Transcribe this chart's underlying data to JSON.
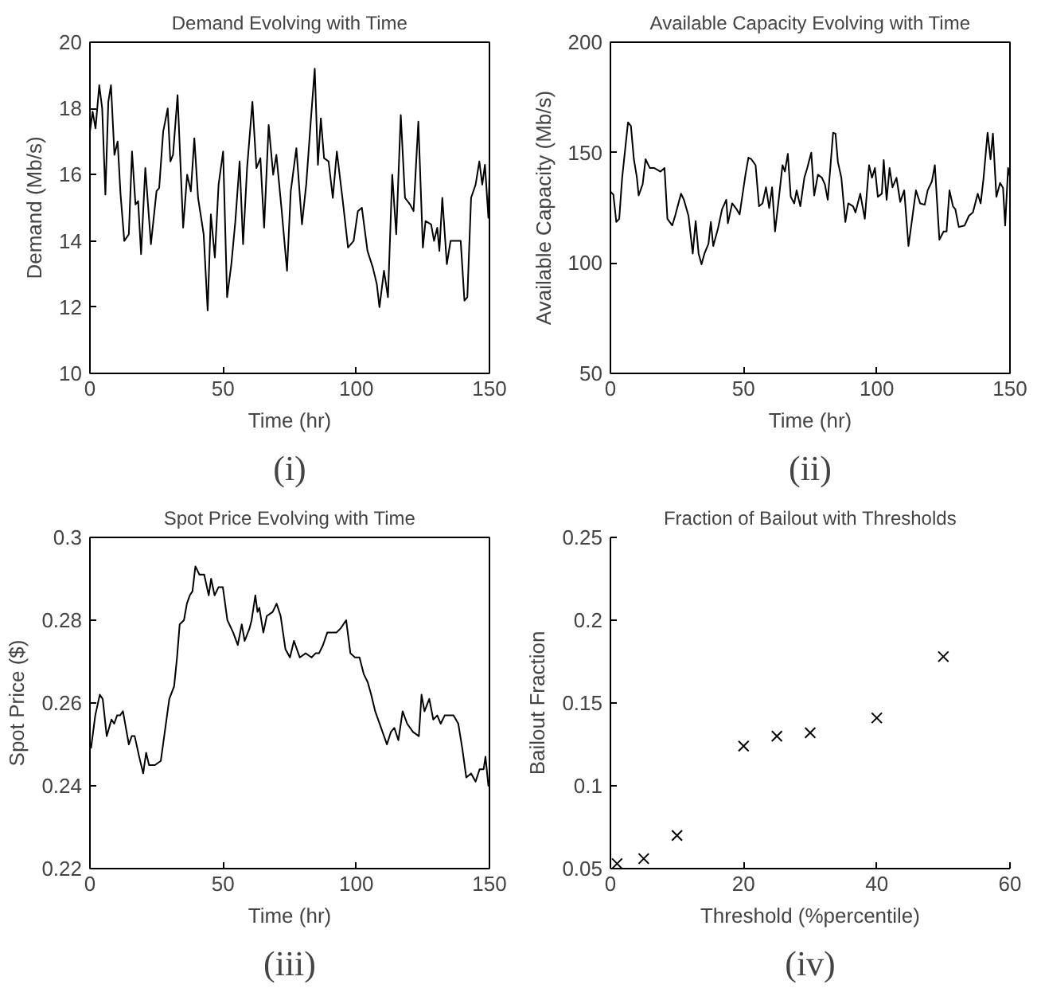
{
  "chart_data": [
    {
      "type": "line",
      "title": "Demand Evolving with Time",
      "xlabel": "Time (hr)",
      "ylabel": "Demand (Mb/s)",
      "annotations": [
        "(i)"
      ],
      "xlim": [
        0,
        150
      ],
      "xticks": [
        0,
        50,
        100,
        150
      ],
      "ylim": [
        10,
        20
      ],
      "yticks": [
        10,
        12,
        14,
        16,
        18,
        20
      ],
      "grid": false,
      "series": [
        {
          "color": "#000000",
          "x": [
            0,
            1.0,
            2.1,
            3.5,
            4.6,
            5.8,
            6.9,
            7.9,
            9.2,
            10.4,
            11.5,
            12.9,
            14.6,
            15.8,
            17.1,
            18.1,
            19.2,
            20.8,
            22.9,
            25,
            26,
            27.5,
            29.2,
            30.2,
            31.2,
            32.9,
            35,
            36.5,
            37.9,
            39.2,
            40.6,
            42.7,
            44.2,
            45.4,
            46.9,
            48.3,
            50,
            51.5,
            53.1,
            54.6,
            56.2,
            57.5,
            59,
            61,
            62.5,
            64,
            65.4,
            67.1,
            68.8,
            70,
            71.9,
            74,
            75.4,
            77.5,
            79.6,
            81.2,
            82.9,
            84.4,
            85.6,
            86.7,
            87.9,
            89.6,
            91.2,
            92.7,
            94.8,
            96.9,
            99,
            100.6,
            102.1,
            104.2,
            106.2,
            107.7,
            108.7,
            110.4,
            111.9,
            113.5,
            115,
            116.7,
            118.3,
            120.2,
            121.5,
            123.3,
            125,
            126,
            128.1,
            129.2,
            130.4,
            131.2,
            132.3,
            134,
            135.4,
            137.5,
            139.2,
            140.6,
            141.7,
            143.1,
            144.8,
            146.2,
            147.3,
            148.3,
            149.6,
            150
          ],
          "values": [
            17.3,
            17.9,
            17.4,
            18.7,
            18.0,
            15.4,
            18.2,
            18.7,
            16.6,
            17.0,
            15.4,
            14.0,
            14.2,
            16.7,
            15.1,
            15.2,
            13.6,
            16.2,
            13.9,
            15.5,
            15.6,
            17.3,
            18.0,
            16.4,
            16.6,
            18.4,
            14.4,
            16.0,
            15.5,
            17.1,
            15.3,
            14.2,
            11.9,
            14.8,
            13.5,
            15.7,
            16.7,
            12.3,
            13.3,
            14.6,
            16.4,
            13.9,
            16.2,
            18.2,
            16.2,
            16.5,
            14.4,
            17.5,
            16.0,
            16.6,
            15.0,
            13.1,
            15.5,
            16.8,
            14.5,
            15.7,
            17.6,
            19.2,
            16.3,
            17.7,
            16.5,
            16.4,
            15.3,
            16.7,
            15.3,
            13.8,
            14.0,
            14.9,
            15.0,
            13.7,
            13.2,
            12.7,
            12.0,
            13.1,
            12.3,
            16.0,
            14.2,
            17.8,
            15.3,
            15.1,
            14.9,
            17.6,
            13.8,
            14.6,
            14.5,
            14.0,
            14.4,
            13.7,
            15.3,
            13.3,
            14.0,
            14.0,
            14.0,
            12.2,
            12.3,
            15.3,
            15.7,
            16.4,
            15.7,
            16.3,
            14.7,
            16.0
          ]
        }
      ]
    },
    {
      "type": "line",
      "title": "Available Capacity Evolving with Time",
      "xlabel": "Time (hr)",
      "ylabel": "Available Capacity (Mb/s)",
      "annotations": [
        "(ii)"
      ],
      "xlim": [
        0,
        150
      ],
      "xticks": [
        0,
        50,
        100,
        150
      ],
      "ylim": [
        50,
        200
      ],
      "yticks": [
        50,
        100,
        150,
        200
      ],
      "grid": false,
      "series": [
        {
          "color": "#000000",
          "x": [
            0,
            1.1,
            2.2,
            3.3,
            4.4,
            6.6,
            7.7,
            8.8,
            9.9,
            10.6,
            12.1,
            13.2,
            14.8,
            16.5,
            18.8,
            20.3,
            21.4,
            23.2,
            24.3,
            26.5,
            27.6,
            29.3,
            30.9,
            32,
            33.1,
            34.2,
            35.3,
            36.8,
            37.7,
            38.6,
            40.4,
            41.9,
            43.5,
            44.1,
            45.7,
            47.4,
            48.5,
            50.7,
            51.8,
            52.9,
            54.5,
            55.8,
            57.1,
            58.4,
            59.6,
            60.7,
            61.8,
            63.3,
            64.6,
            65.5,
            66.6,
            67.7,
            69,
            69.9,
            71.3,
            72.8,
            73.9,
            75.4,
            76.5,
            77.9,
            79.4,
            80.5,
            81.6,
            83.6,
            84.5,
            85.4,
            86.7,
            88.2,
            89.3,
            91.1,
            92,
            93.8,
            95.5,
            97.1,
            98.2,
            99.3,
            100.4,
            101.9,
            102.6,
            103.7,
            104.8,
            105.9,
            107.4,
            108.8,
            110.3,
            111.9,
            113.6,
            114.7,
            116.3,
            118,
            119.1,
            120.7,
            121.8,
            123.5,
            125.1,
            126.2,
            127.3,
            128.6,
            129.5,
            130.8,
            133,
            134.6,
            136.1,
            137.9,
            139,
            140.1,
            141.6,
            142.7,
            143.6,
            144.9,
            146.3,
            147.4,
            148.2,
            149.3,
            150
          ],
          "values": [
            132.3,
            131,
            118.6,
            120,
            138.6,
            163.7,
            162,
            147,
            139,
            130.6,
            135.7,
            147,
            143,
            143,
            141.4,
            143,
            120,
            117,
            121.4,
            131.4,
            128.6,
            121.4,
            104.3,
            119,
            104.3,
            99.4,
            104.3,
            108.6,
            118.6,
            107.7,
            115.7,
            124.3,
            128.6,
            118,
            127,
            124.3,
            122,
            140,
            147.7,
            147,
            144.3,
            125.7,
            127,
            134.3,
            124.9,
            134.3,
            114.3,
            130,
            144.3,
            141.4,
            149.4,
            130,
            127,
            132.9,
            125.7,
            138.6,
            143,
            150,
            130.6,
            140,
            138.6,
            135.7,
            128.6,
            159,
            158.6,
            145.7,
            138.6,
            118.6,
            127,
            125.7,
            122.9,
            131.4,
            120,
            144.3,
            138.6,
            143,
            130,
            131.4,
            146.6,
            128.6,
            143,
            134.3,
            138.6,
            127.7,
            132.9,
            107.7,
            122.9,
            132.9,
            127,
            126.4,
            132.9,
            137,
            144.3,
            110.6,
            114.3,
            114.3,
            132.9,
            125.7,
            124.3,
            116.3,
            117,
            121.4,
            122.9,
            131.4,
            127,
            138.6,
            159,
            147,
            158.6,
            130,
            136.3,
            134,
            117,
            143,
            139
          ]
        }
      ]
    },
    {
      "type": "line",
      "title": "Spot Price Evolving with Time",
      "xlabel": "Time (hr)",
      "ylabel": "Spot Price ($)",
      "annotations": [
        "(iii)"
      ],
      "xlim": [
        0,
        150
      ],
      "xticks": [
        0,
        50,
        100,
        150
      ],
      "ylim": [
        0.22,
        0.3
      ],
      "yticks": [
        0.22,
        0.24,
        0.26,
        0.28,
        0.3
      ],
      "grid": false,
      "series": [
        {
          "color": "#000000",
          "x": [
            0.4,
            2,
            3.7,
            4.8,
            6.3,
            8.1,
            9.1,
            10.2,
            11.3,
            12.4,
            13.5,
            14.6,
            15.7,
            16.8,
            18.5,
            20,
            21.1,
            22.2,
            24.4,
            26.6,
            28.1,
            29.8,
            31.6,
            32.7,
            33.7,
            35.3,
            36.4,
            37.5,
            38.5,
            39.6,
            41.1,
            42.9,
            44.6,
            45.5,
            46.8,
            48.3,
            49.9,
            51.6,
            53.8,
            55.5,
            57,
            58.1,
            59.9,
            60.7,
            62.1,
            62.9,
            63.6,
            65.1,
            66.4,
            68.6,
            70.1,
            71.6,
            73.4,
            75.1,
            76.6,
            78.8,
            81,
            83.2,
            84.7,
            86,
            87.5,
            89.1,
            90.8,
            92.5,
            94.1,
            96.2,
            97.8,
            99.5,
            101.2,
            102.8,
            104.3,
            105.6,
            107.1,
            109.3,
            111.5,
            113,
            114.3,
            115.8,
            117.4,
            119.1,
            121.3,
            123.5,
            124.5,
            125.6,
            127.4,
            128.9,
            130.4,
            131.7,
            133.2,
            134.8,
            136.5,
            138.3,
            139.8,
            141.3,
            143.1,
            144.8,
            146.3,
            147.8,
            148.5,
            149.6,
            150
          ],
          "values": [
            0.249,
            0.257,
            0.262,
            0.261,
            0.252,
            0.256,
            0.255,
            0.257,
            0.257,
            0.258,
            0.254,
            0.25,
            0.252,
            0.252,
            0.247,
            0.243,
            0.248,
            0.245,
            0.245,
            0.246,
            0.253,
            0.261,
            0.264,
            0.271,
            0.279,
            0.28,
            0.284,
            0.286,
            0.287,
            0.293,
            0.291,
            0.291,
            0.286,
            0.29,
            0.286,
            0.288,
            0.288,
            0.28,
            0.277,
            0.274,
            0.279,
            0.275,
            0.278,
            0.28,
            0.286,
            0.282,
            0.283,
            0.277,
            0.281,
            0.282,
            0.284,
            0.281,
            0.273,
            0.271,
            0.275,
            0.271,
            0.272,
            0.271,
            0.272,
            0.272,
            0.274,
            0.277,
            0.277,
            0.277,
            0.278,
            0.28,
            0.272,
            0.271,
            0.271,
            0.267,
            0.265,
            0.262,
            0.258,
            0.254,
            0.25,
            0.253,
            0.254,
            0.251,
            0.258,
            0.255,
            0.253,
            0.252,
            0.262,
            0.258,
            0.261,
            0.256,
            0.257,
            0.255,
            0.257,
            0.257,
            0.257,
            0.255,
            0.249,
            0.242,
            0.243,
            0.241,
            0.244,
            0.244,
            0.247,
            0.24,
            0.241
          ]
        }
      ]
    },
    {
      "type": "scatter",
      "title": "Fraction of Bailout with Thresholds",
      "xlabel": "Threshold (%percentile)",
      "ylabel": "Bailout Fraction",
      "annotations": [
        "(iv)"
      ],
      "xlim": [
        0,
        60
      ],
      "xticks": [
        0,
        20,
        40,
        60
      ],
      "ylim": [
        0.05,
        0.25
      ],
      "yticks": [
        0.05,
        0.1,
        0.15,
        0.2,
        0.25
      ],
      "grid": false,
      "marker": "cross",
      "series": [
        {
          "color": "#000000",
          "x": [
            1,
            5,
            10,
            20,
            25,
            30,
            40,
            50
          ],
          "values": [
            0.053,
            0.056,
            0.07,
            0.124,
            0.13,
            0.132,
            0.141,
            0.178
          ]
        }
      ]
    }
  ]
}
